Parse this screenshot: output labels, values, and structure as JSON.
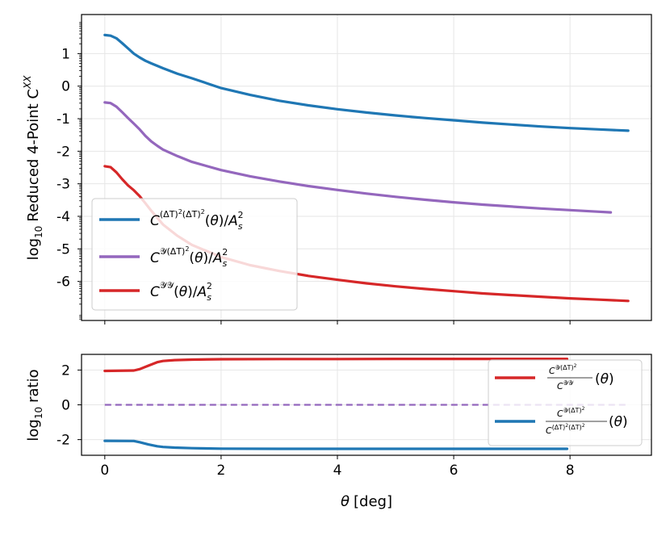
{
  "chart_data": [
    {
      "type": "line",
      "panel": "top",
      "ylabel": "log10 Reduced 4-Point C^XX",
      "ylabel_parts": {
        "prefix": "log",
        "sub": "10",
        "main": "Reduced 4-Point C",
        "sup": "XX"
      },
      "xlim": [
        -0.4,
        9.4
      ],
      "ylim": [
        -7.2,
        2.2
      ],
      "yticks": [
        1,
        0,
        -1,
        -2,
        -3,
        -4,
        -5,
        -6
      ],
      "ytick_labels": [
        "1",
        "0",
        "-1",
        "-2",
        "-3",
        "-4",
        "-5",
        "-6"
      ],
      "xticks": [
        0,
        2,
        4,
        6,
        8
      ],
      "grid": true,
      "legend_position": "lower-left",
      "series": [
        {
          "name": "C^{(ΔT)^2(ΔT)^2}(θ)/A_s^2",
          "color": "#1f77b4",
          "x": [
            0,
            0.1,
            0.2,
            0.3,
            0.4,
            0.5,
            0.6,
            0.7,
            0.8,
            1.0,
            1.25,
            1.5,
            2.0,
            2.5,
            3.0,
            3.5,
            4.0,
            4.5,
            5.0,
            5.5,
            6.0,
            6.5,
            7.0,
            7.5,
            8.0,
            8.5,
            9.0
          ],
          "y": [
            1.57,
            1.55,
            1.47,
            1.32,
            1.16,
            1.0,
            0.88,
            0.78,
            0.7,
            0.55,
            0.38,
            0.24,
            -0.06,
            -0.27,
            -0.45,
            -0.59,
            -0.71,
            -0.81,
            -0.9,
            -0.98,
            -1.05,
            -1.12,
            -1.18,
            -1.24,
            -1.29,
            -1.33,
            -1.37
          ]
        },
        {
          "name": "C^{Y(ΔT)^2}(θ)/A_s^2",
          "color": "#9467bd",
          "x": [
            0,
            0.1,
            0.2,
            0.3,
            0.4,
            0.5,
            0.6,
            0.7,
            0.8,
            0.9,
            1.0,
            1.25,
            1.5,
            2.0,
            2.5,
            3.0,
            3.5,
            4.0,
            4.5,
            5.0,
            5.5,
            6.0,
            6.5,
            7.0,
            7.5,
            8.0,
            8.5,
            8.7
          ],
          "y": [
            -0.5,
            -0.52,
            -0.63,
            -0.8,
            -0.98,
            -1.15,
            -1.33,
            -1.53,
            -1.7,
            -1.83,
            -1.95,
            -2.15,
            -2.33,
            -2.58,
            -2.77,
            -2.93,
            -3.07,
            -3.19,
            -3.3,
            -3.4,
            -3.49,
            -3.57,
            -3.64,
            -3.7,
            -3.76,
            -3.81,
            -3.86,
            -3.88
          ]
        },
        {
          "name": "C^{YY}(θ)/A_s^2",
          "color": "#d62728",
          "x": [
            0,
            0.1,
            0.2,
            0.3,
            0.4,
            0.5,
            0.6,
            0.7,
            0.8,
            1.0,
            1.25,
            1.5,
            2.0,
            2.5,
            3.0,
            3.5,
            4.0,
            4.5,
            5.0,
            5.5,
            6.0,
            6.5,
            7.0,
            7.5,
            8.0,
            8.5,
            9.0
          ],
          "y": [
            -2.46,
            -2.49,
            -2.65,
            -2.86,
            -3.05,
            -3.2,
            -3.38,
            -3.6,
            -3.83,
            -4.25,
            -4.6,
            -4.88,
            -5.25,
            -5.5,
            -5.68,
            -5.83,
            -5.95,
            -6.06,
            -6.15,
            -6.23,
            -6.3,
            -6.37,
            -6.42,
            -6.47,
            -6.52,
            -6.56,
            -6.6
          ]
        }
      ]
    },
    {
      "type": "line",
      "panel": "bottom",
      "ylabel": "log10 ratio",
      "ylabel_parts": {
        "prefix": "log",
        "sub": "10",
        "main": "ratio"
      },
      "xlabel": "θ [deg]",
      "xlabel_parts": {
        "sym": "θ",
        "unit": "[deg]"
      },
      "xlim": [
        -0.4,
        9.4
      ],
      "ylim": [
        -2.9,
        2.9
      ],
      "yticks": [
        2,
        0,
        -2
      ],
      "ytick_labels": [
        "2",
        "0",
        "-2"
      ],
      "xticks": [
        0,
        2,
        4,
        6,
        8
      ],
      "xtick_labels": [
        "0",
        "2",
        "4",
        "6",
        "8"
      ],
      "grid": true,
      "legend_position": "right",
      "series": [
        {
          "name": "C^{Y(ΔT)^2}/C^{YY}(θ)",
          "color": "#d62728",
          "x": [
            0,
            0.5,
            0.6,
            0.75,
            0.9,
            1.0,
            1.2,
            1.5,
            2.0,
            3.0,
            4.0,
            5.0,
            6.0,
            7.0,
            7.95
          ],
          "y": [
            1.95,
            1.97,
            2.05,
            2.25,
            2.45,
            2.52,
            2.57,
            2.6,
            2.62,
            2.63,
            2.63,
            2.64,
            2.64,
            2.64,
            2.64
          ]
        },
        {
          "name": "C^{Y(ΔT)^2}/C^{(ΔT)^2(ΔT)^2}(θ)",
          "color": "#1f77b4",
          "x": [
            0,
            0.5,
            0.6,
            0.75,
            0.9,
            1.0,
            1.2,
            1.5,
            2.0,
            3.0,
            4.0,
            5.0,
            6.0,
            7.0,
            7.95
          ],
          "y": [
            -2.07,
            -2.08,
            -2.15,
            -2.28,
            -2.38,
            -2.42,
            -2.46,
            -2.49,
            -2.52,
            -2.53,
            -2.53,
            -2.53,
            -2.53,
            -2.53,
            -2.53
          ]
        },
        {
          "name": "zero",
          "color": "#9467bd",
          "dashed": true,
          "x": [
            0,
            9.0
          ],
          "y": [
            0,
            0
          ]
        }
      ],
      "legend": [
        {
          "num": "C^{Y(ΔT)^2}",
          "den": "C^{YY}",
          "arg": "(θ)",
          "color": "#d62728"
        },
        {
          "num": "C^{Y(ΔT)^2}",
          "den": "C^{(ΔT)^2(ΔT)^2}",
          "arg": "(θ)",
          "color": "#1f77b4"
        }
      ]
    }
  ]
}
